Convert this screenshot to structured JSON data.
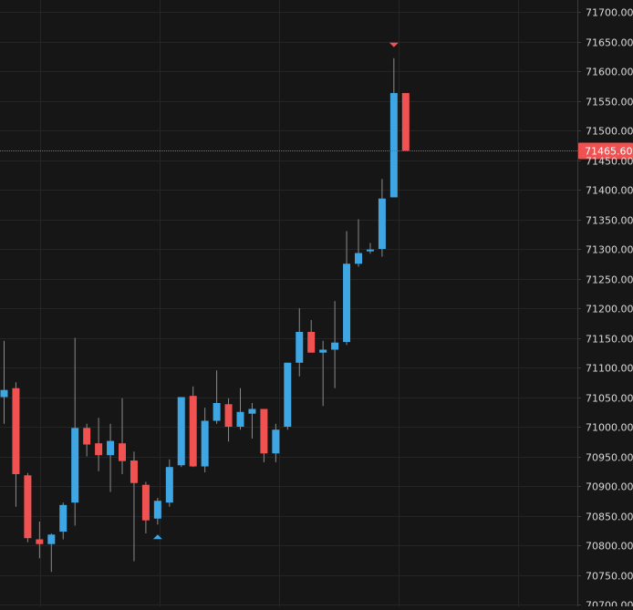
{
  "colors": {
    "background": "#161616",
    "grid": "#252525",
    "axis_line": "#3a3a3a",
    "axis_text": "#d9d9d9",
    "up": "#3ea6e3",
    "down": "#f05252",
    "wick": "#8a8a8a",
    "price_line": "#c0553e",
    "price_label_bg": "#f05252",
    "price_label_text": "#ffffff"
  },
  "chart_data": {
    "type": "candlestick",
    "y_axis": {
      "position": "right",
      "range": [
        70700,
        71710
      ],
      "tick_step": 50,
      "tick_labels": [
        "70700.00",
        "70750.00",
        "70800.00",
        "70850.00",
        "70900.00",
        "70950.00",
        "71000.00",
        "71050.00",
        "71100.00",
        "71150.00",
        "71200.00",
        "71250.00",
        "71300.00",
        "71350.00",
        "71400.00",
        "71450.00",
        "71500.00",
        "71550.00",
        "71600.00",
        "71650.00",
        "71700.00"
      ]
    },
    "grid": true,
    "current_price": {
      "value": 71465.6,
      "label": "71465.60"
    },
    "candles": [
      {
        "o": 71050,
        "h": 71145,
        "l": 71005,
        "c": 71062
      },
      {
        "o": 71065,
        "h": 71075,
        "l": 70865,
        "c": 70920
      },
      {
        "o": 70918,
        "h": 70922,
        "l": 70805,
        "c": 70812
      },
      {
        "o": 70810,
        "h": 70840,
        "l": 70778,
        "c": 70802
      },
      {
        "o": 70802,
        "h": 70820,
        "l": 70755,
        "c": 70818
      },
      {
        "o": 70823,
        "h": 70872,
        "l": 70810,
        "c": 70868
      },
      {
        "o": 70872,
        "h": 71150,
        "l": 70833,
        "c": 70998
      },
      {
        "o": 70998,
        "h": 71005,
        "l": 70950,
        "c": 70970
      },
      {
        "o": 70972,
        "h": 71015,
        "l": 70925,
        "c": 70952
      },
      {
        "o": 70952,
        "h": 71005,
        "l": 70890,
        "c": 70976
      },
      {
        "o": 70972,
        "h": 71048,
        "l": 70920,
        "c": 70942
      },
      {
        "o": 70943,
        "h": 70958,
        "l": 70773,
        "c": 70905
      },
      {
        "o": 70902,
        "h": 70907,
        "l": 70820,
        "c": 70842
      },
      {
        "o": 70845,
        "h": 70880,
        "l": 70835,
        "c": 70875
      },
      {
        "o": 70872,
        "h": 70945,
        "l": 70865,
        "c": 70932
      },
      {
        "o": 70935,
        "h": 71050,
        "l": 70932,
        "c": 71050
      },
      {
        "o": 71052,
        "h": 71068,
        "l": 70932,
        "c": 70933
      },
      {
        "o": 70933,
        "h": 71032,
        "l": 70923,
        "c": 71010
      },
      {
        "o": 71010,
        "h": 71095,
        "l": 71005,
        "c": 71040
      },
      {
        "o": 71038,
        "h": 71048,
        "l": 70975,
        "c": 71000
      },
      {
        "o": 71000,
        "h": 71065,
        "l": 70995,
        "c": 71025
      },
      {
        "o": 71022,
        "h": 71040,
        "l": 70980,
        "c": 71030
      },
      {
        "o": 71030,
        "h": 71030,
        "l": 70940,
        "c": 70955
      },
      {
        "o": 70955,
        "h": 71005,
        "l": 70940,
        "c": 70995
      },
      {
        "o": 71000,
        "h": 71108,
        "l": 70995,
        "c": 71108
      },
      {
        "o": 71108,
        "h": 71200,
        "l": 71085,
        "c": 71160
      },
      {
        "o": 71160,
        "h": 71180,
        "l": 71125,
        "c": 71125
      },
      {
        "o": 71125,
        "h": 71145,
        "l": 71035,
        "c": 71130
      },
      {
        "o": 71130,
        "h": 71212,
        "l": 71065,
        "c": 71142
      },
      {
        "o": 71143,
        "h": 71330,
        "l": 71138,
        "c": 71275
      },
      {
        "o": 71275,
        "h": 71350,
        "l": 71270,
        "c": 71293
      },
      {
        "o": 71296,
        "h": 71310,
        "l": 71292,
        "c": 71299
      },
      {
        "o": 71300,
        "h": 71418,
        "l": 71287,
        "c": 71385
      },
      {
        "o": 71387,
        "h": 71622,
        "l": 71387,
        "c": 71563
      },
      {
        "o": 71563,
        "h": 71563,
        "l": 71465.6,
        "c": 71465.6
      }
    ],
    "markers": [
      {
        "candle": 13,
        "type": "triangle-up",
        "color": "#3ea6e3"
      },
      {
        "candle": 33,
        "type": "triangle-down",
        "color": "#f05252"
      }
    ]
  }
}
